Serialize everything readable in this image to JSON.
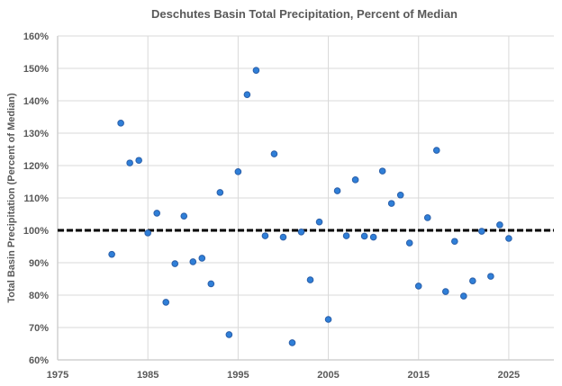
{
  "chart_data": {
    "type": "scatter",
    "title": "Deschutes Basin Total Precipitation, Percent of Median",
    "xlabel": "",
    "ylabel": "Total Basin Precipitation (Percent of Median)",
    "xlim": [
      1975,
      2030
    ],
    "ylim": [
      60,
      160
    ],
    "x_ticks": [
      1975,
      1985,
      1995,
      2005,
      2015,
      2025
    ],
    "x_tick_labels": [
      "1975",
      "1985",
      "1995",
      "2005",
      "2015",
      "2025"
    ],
    "y_ticks": [
      60,
      70,
      80,
      90,
      100,
      110,
      120,
      130,
      140,
      150,
      160
    ],
    "y_tick_labels": [
      "60%",
      "70%",
      "80%",
      "90%",
      "100%",
      "110%",
      "120%",
      "130%",
      "140%",
      "150%",
      "160%"
    ],
    "grid": true,
    "legend": "none",
    "reference_line": {
      "y": 100,
      "style": "dashed",
      "color": "#000000"
    },
    "marker_color": "#2f7fd8",
    "series": [
      {
        "name": "Percent of Median",
        "x": [
          1981,
          1982,
          1983,
          1984,
          1985,
          1986,
          1987,
          1988,
          1989,
          1990,
          1991,
          1992,
          1993,
          1994,
          1995,
          1996,
          1997,
          1998,
          1999,
          2000,
          2001,
          2002,
          2003,
          2004,
          2005,
          2006,
          2007,
          2008,
          2009,
          2010,
          2011,
          2012,
          2013,
          2014,
          2015,
          2016,
          2017,
          2018,
          2019,
          2020,
          2021,
          2022,
          2023,
          2024,
          2025
        ],
        "y": [
          92.6,
          133.1,
          120.8,
          121.6,
          99.2,
          105.3,
          77.8,
          89.7,
          104.4,
          90.3,
          91.4,
          83.5,
          111.7,
          67.8,
          118.1,
          141.9,
          149.4,
          98.3,
          123.6,
          97.9,
          65.3,
          99.5,
          84.7,
          102.6,
          72.5,
          112.2,
          98.3,
          115.6,
          98.2,
          97.9,
          118.3,
          108.3,
          110.9,
          96.1,
          82.8,
          103.9,
          124.7,
          81.1,
          96.6,
          79.7,
          84.4,
          99.7,
          85.8,
          101.7,
          97.5
        ]
      }
    ]
  }
}
